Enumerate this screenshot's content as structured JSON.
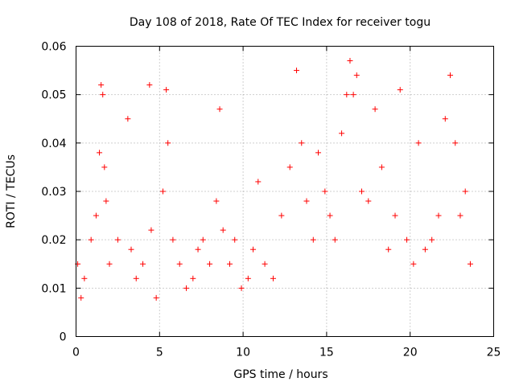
{
  "chart_data": {
    "type": "scatter",
    "title": "Day 108 of 2018, Rate Of TEC Index for receiver togu",
    "xlabel": "GPS time / hours",
    "ylabel": "ROTI / TECUs",
    "xlim": [
      0,
      25
    ],
    "ylim": [
      0,
      0.06
    ],
    "xticks": [
      0,
      5,
      10,
      15,
      20,
      25
    ],
    "yticks": [
      0,
      0.01,
      0.02,
      0.03,
      0.04,
      0.05,
      0.06
    ],
    "xtick_labels": [
      "0",
      "5",
      "10",
      "15",
      "20",
      "25"
    ],
    "ytick_labels": [
      "0",
      "0.01",
      "0.02",
      "0.03",
      "0.04",
      "0.05",
      "0.06"
    ],
    "grid": true,
    "marker": "plus",
    "color": "#ff0000",
    "x_extent": [
      0,
      23.8
    ],
    "y_extent": [
      0.005,
      0.057
    ],
    "series": [
      {
        "x": [
          0.1,
          0.3,
          0.5,
          0.9,
          1.2,
          1.4,
          1.5,
          1.6,
          1.7,
          1.8,
          2.0,
          2.5,
          3.1,
          3.3,
          3.6,
          4.0,
          4.4,
          4.5,
          4.8,
          5.2,
          5.4,
          5.5,
          5.8,
          6.2,
          6.6,
          7.0,
          7.3,
          7.6,
          8.0,
          8.4,
          8.6,
          8.8,
          9.2,
          9.5,
          9.9,
          10.3,
          10.6,
          10.9,
          11.3,
          11.8,
          12.3,
          12.8,
          13.2,
          13.5,
          13.8,
          14.2,
          14.5,
          14.9,
          15.2,
          15.5,
          15.9,
          16.2,
          16.4,
          16.6,
          16.8,
          17.1,
          17.5,
          17.9,
          18.3,
          18.7,
          19.1,
          19.4,
          19.8,
          20.2,
          20.5,
          20.9,
          21.3,
          21.7,
          22.1,
          22.4,
          22.7,
          23.0,
          23.3,
          23.6
        ],
        "y": [
          0.015,
          0.008,
          0.012,
          0.02,
          0.025,
          0.038,
          0.052,
          0.05,
          0.035,
          0.028,
          0.015,
          0.02,
          0.045,
          0.018,
          0.012,
          0.015,
          0.052,
          0.022,
          0.008,
          0.03,
          0.051,
          0.04,
          0.02,
          0.015,
          0.01,
          0.012,
          0.018,
          0.02,
          0.015,
          0.028,
          0.047,
          0.022,
          0.015,
          0.02,
          0.01,
          0.012,
          0.018,
          0.032,
          0.015,
          0.012,
          0.025,
          0.035,
          0.055,
          0.04,
          0.028,
          0.02,
          0.038,
          0.03,
          0.025,
          0.02,
          0.042,
          0.05,
          0.057,
          0.05,
          0.054,
          0.03,
          0.028,
          0.047,
          0.035,
          0.018,
          0.025,
          0.051,
          0.02,
          0.015,
          0.04,
          0.018,
          0.02,
          0.025,
          0.045,
          0.054,
          0.04,
          0.025,
          0.03,
          0.015
        ]
      }
    ]
  }
}
